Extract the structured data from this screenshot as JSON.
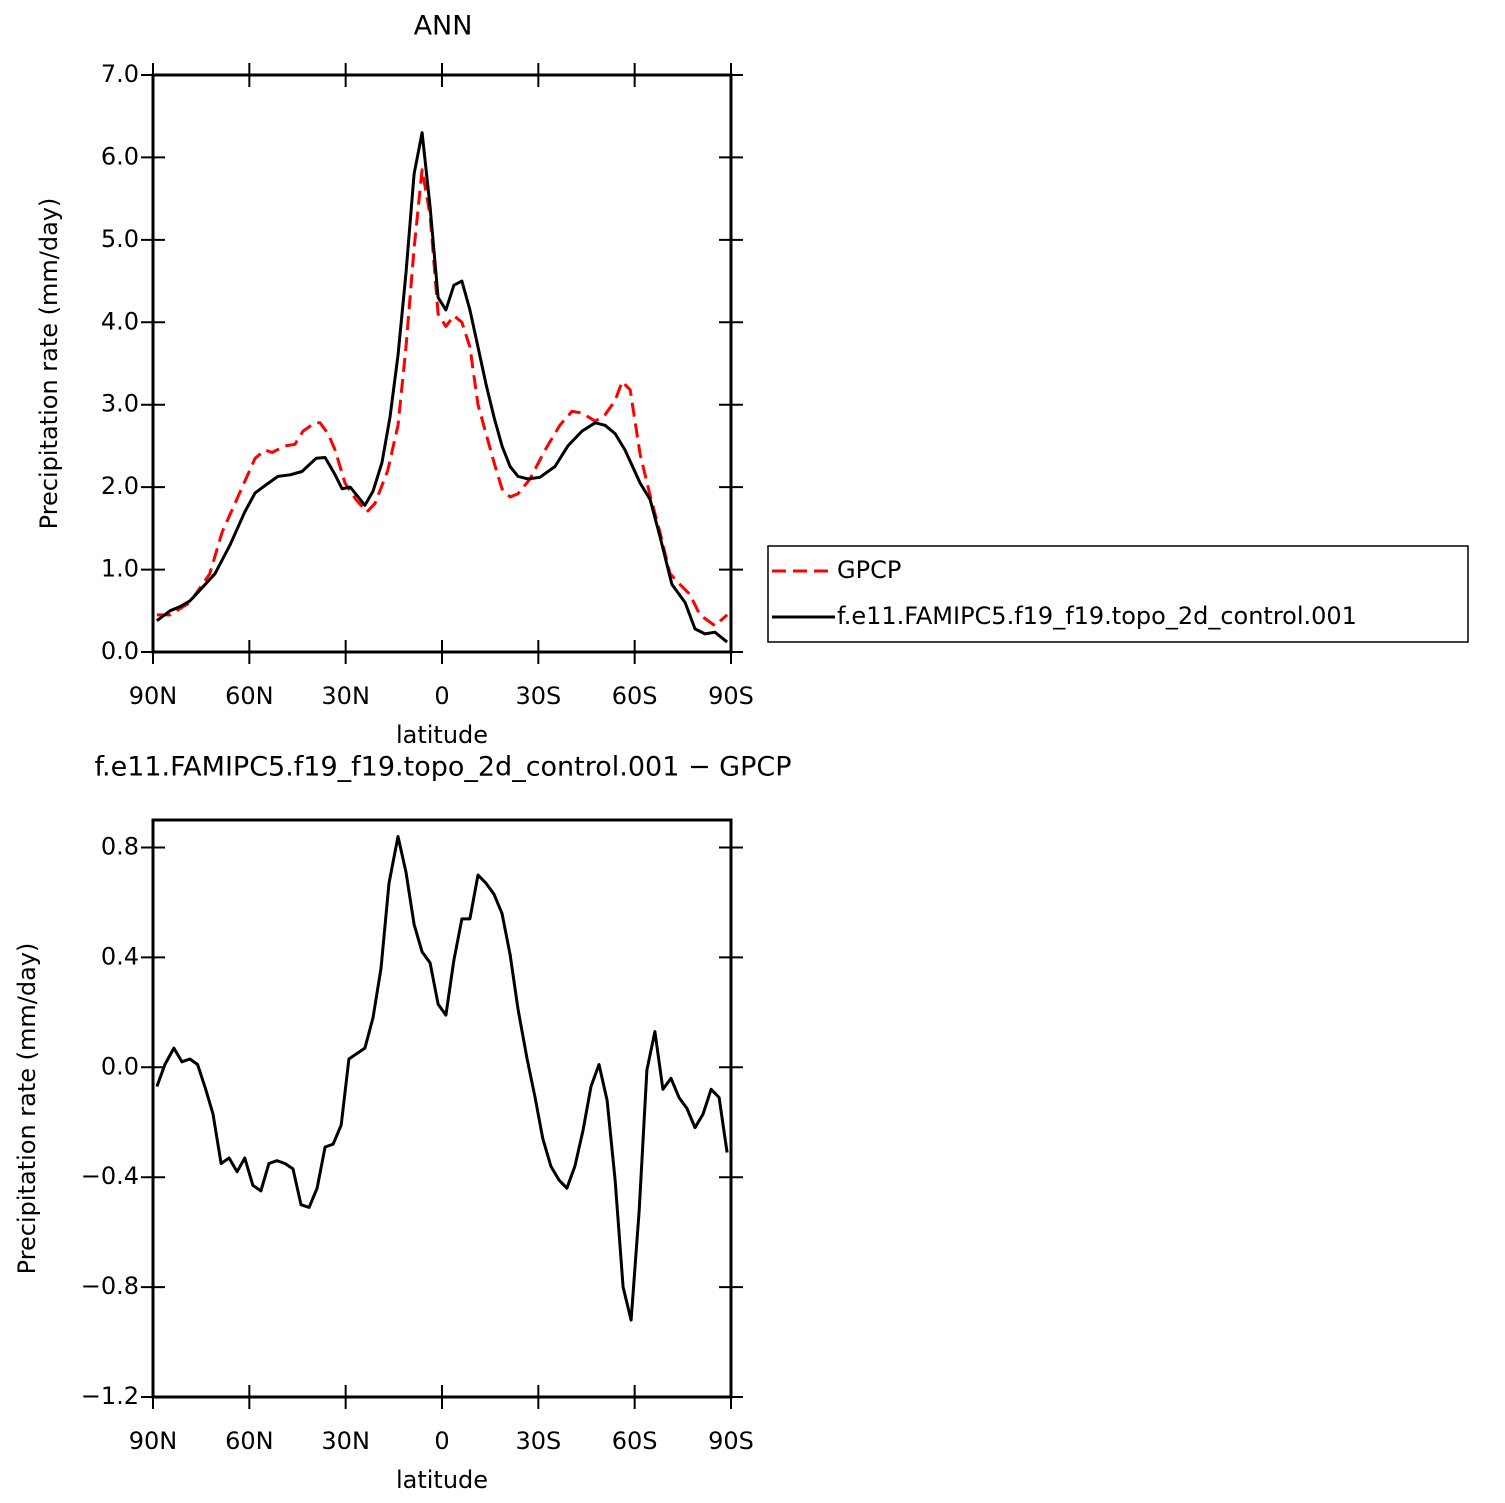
{
  "chart_data": [
    {
      "type": "line",
      "title": "ANN",
      "xlabel": "latitude",
      "ylabel": "Precipitation rate (mm/day)",
      "xlim": [
        90,
        -90
      ],
      "xticks": [
        {
          "value": 90,
          "label": "90N"
        },
        {
          "value": 60,
          "label": "60N"
        },
        {
          "value": 30,
          "label": "30N"
        },
        0,
        {
          "value": -30,
          "label": "30S"
        },
        {
          "value": -60,
          "label": "60S"
        },
        {
          "value": -90,
          "label": "90S"
        }
      ],
      "ylim": [
        0,
        7
      ],
      "yticks": [
        {
          "value": 0,
          "label": "0.0"
        },
        {
          "value": 1,
          "label": "1.0"
        },
        {
          "value": 2,
          "label": "2.0"
        },
        {
          "value": 3,
          "label": "3.0"
        },
        {
          "value": 4,
          "label": "4.0"
        },
        {
          "value": 5,
          "label": "5.0"
        },
        {
          "value": 6,
          "label": "6.0"
        },
        {
          "value": 7,
          "label": "7.0"
        }
      ],
      "legend": "outside right",
      "series": [
        {
          "name": "GPCP",
          "color": "#ff0000",
          "dash": true,
          "x": [
            88.8,
            84.7,
            78.5,
            72.3,
            68.5,
            64.5,
            58.2,
            55.1,
            52.9,
            48.9,
            45.8,
            43.3,
            39.6,
            38.0,
            35.5,
            33.3,
            30.2,
            26.8,
            23.4,
            20.9,
            16.9,
            13.7,
            11.2,
            8.7,
            6.2,
            3.7,
            1.2,
            -1.2,
            -3.7,
            -6.2,
            -8.7,
            -11.2,
            -13.7,
            -16.2,
            -18.7,
            -21.2,
            -23.7,
            -27.4,
            -32.1,
            -36.7,
            -40.5,
            -43.6,
            -47.7,
            -50.8,
            -53.9,
            -56.1,
            -58.6,
            -61.7,
            -64.8,
            -67.9,
            -71.0,
            -74.1,
            -77.2,
            -80.3,
            -85.0,
            -88.8
          ],
          "values": [
            0.45,
            0.45,
            0.6,
            0.95,
            1.45,
            1.8,
            2.35,
            2.45,
            2.42,
            2.5,
            2.52,
            2.68,
            2.78,
            2.78,
            2.65,
            2.45,
            2.05,
            1.85,
            1.7,
            1.8,
            2.2,
            2.75,
            3.7,
            4.9,
            5.85,
            5.3,
            4.1,
            3.95,
            4.08,
            4.0,
            3.7,
            3.0,
            2.65,
            2.3,
            1.98,
            1.88,
            1.92,
            2.1,
            2.45,
            2.75,
            2.92,
            2.9,
            2.8,
            2.88,
            3.05,
            3.28,
            3.18,
            2.4,
            1.9,
            1.45,
            0.95,
            0.82,
            0.7,
            0.45,
            0.32,
            0.45
          ]
        },
        {
          "name": "f.e11.FAMIPC5.f19_f19.topo_2d_control.001",
          "color": "#000000",
          "dash": false,
          "x": [
            88.8,
            84.7,
            81.6,
            78.5,
            75.4,
            70.7,
            66.0,
            61.4,
            58.2,
            55.1,
            51.1,
            47.3,
            43.6,
            39.2,
            36.4,
            33.3,
            31.1,
            28.6,
            24.0,
            21.5,
            18.7,
            16.2,
            13.7,
            11.2,
            8.7,
            6.2,
            3.7,
            1.2,
            -1.2,
            -3.7,
            -6.2,
            -8.7,
            -11.2,
            -13.7,
            -16.2,
            -18.7,
            -21.2,
            -23.7,
            -26.8,
            -30.5,
            -35.2,
            -39.2,
            -43.6,
            -47.7,
            -50.8,
            -53.9,
            -57.0,
            -61.7,
            -64.8,
            -67.9,
            -71.6,
            -75.7,
            -78.8,
            -81.9,
            -85.0,
            -88.8
          ],
          "values": [
            0.38,
            0.5,
            0.55,
            0.62,
            0.75,
            0.95,
            1.3,
            1.7,
            1.93,
            2.02,
            2.13,
            2.15,
            2.19,
            2.35,
            2.36,
            2.15,
            1.98,
            2.0,
            1.78,
            1.95,
            2.3,
            2.85,
            3.6,
            4.6,
            5.8,
            6.3,
            5.4,
            4.3,
            4.15,
            4.45,
            4.5,
            4.15,
            3.7,
            3.25,
            2.85,
            2.5,
            2.25,
            2.13,
            2.1,
            2.12,
            2.25,
            2.5,
            2.68,
            2.78,
            2.75,
            2.65,
            2.45,
            2.05,
            1.85,
            1.4,
            0.82,
            0.6,
            0.28,
            0.22,
            0.24,
            0.12
          ]
        }
      ]
    },
    {
      "type": "line",
      "title": "f.e11.FAMIPC5.f19_f19.topo_2d_control.001 − GPCP",
      "xlabel": "latitude",
      "ylabel": "Precipitation rate (mm/day)",
      "xlim": [
        90,
        -90
      ],
      "xticks": [
        {
          "value": 90,
          "label": "90N"
        },
        {
          "value": 60,
          "label": "60N"
        },
        {
          "value": 30,
          "label": "30N"
        },
        0,
        {
          "value": -30,
          "label": "30S"
        },
        {
          "value": -60,
          "label": "60S"
        },
        {
          "value": -90,
          "label": "90S"
        }
      ],
      "ylim": [
        -1.2,
        0.9
      ],
      "yticks": [
        {
          "value": -1.2,
          "label": "−1.2"
        },
        {
          "value": -0.8,
          "label": "−0.8"
        },
        {
          "value": -0.4,
          "label": "−0.4"
        },
        {
          "value": 0,
          "label": "0.0"
        },
        {
          "value": 0.4,
          "label": "0.4"
        },
        {
          "value": 0.8,
          "label": "0.8"
        }
      ],
      "series": [
        {
          "color": "#000000",
          "dash": false,
          "x": [
            88.8,
            86.3,
            83.5,
            81.0,
            78.5,
            76.1,
            73.6,
            71.3,
            68.8,
            66.3,
            63.8,
            61.4,
            58.9,
            56.4,
            53.9,
            51.4,
            48.9,
            46.4,
            43.9,
            41.4,
            38.9,
            36.4,
            33.9,
            31.4,
            29.0,
            26.5,
            24.0,
            21.5,
            19.0,
            16.5,
            13.7,
            11.2,
            8.7,
            6.2,
            3.7,
            1.2,
            -1.2,
            -3.7,
            -6.2,
            -8.7,
            -11.2,
            -13.7,
            -16.2,
            -18.7,
            -21.2,
            -23.7,
            -26.5,
            -29.0,
            -31.4,
            -33.9,
            -36.4,
            -38.9,
            -41.4,
            -43.9,
            -46.4,
            -48.9,
            -51.4,
            -53.9,
            -56.4,
            -58.9,
            -61.4,
            -63.8,
            -66.3,
            -68.8,
            -71.3,
            -73.8,
            -76.3,
            -78.8,
            -81.3,
            -83.8,
            -86.3,
            -88.8
          ],
          "values": [
            -0.07,
            0.01,
            0.07,
            0.02,
            0.03,
            0.01,
            -0.08,
            -0.17,
            -0.35,
            -0.33,
            -0.38,
            -0.33,
            -0.43,
            -0.45,
            -0.35,
            -0.34,
            -0.35,
            -0.37,
            -0.5,
            -0.51,
            -0.44,
            -0.29,
            -0.28,
            -0.21,
            0.03,
            0.05,
            0.07,
            0.18,
            0.36,
            0.67,
            0.84,
            0.71,
            0.52,
            0.42,
            0.38,
            0.23,
            0.19,
            0.39,
            0.54,
            0.54,
            0.7,
            0.67,
            0.63,
            0.56,
            0.41,
            0.21,
            0.03,
            -0.11,
            -0.26,
            -0.36,
            -0.41,
            -0.44,
            -0.36,
            -0.23,
            -0.07,
            0.01,
            -0.12,
            -0.41,
            -0.8,
            -0.92,
            -0.52,
            -0.01,
            0.13,
            -0.08,
            -0.04,
            -0.11,
            -0.15,
            -0.22,
            -0.17,
            -0.08,
            -0.11,
            -0.31
          ]
        }
      ]
    }
  ]
}
